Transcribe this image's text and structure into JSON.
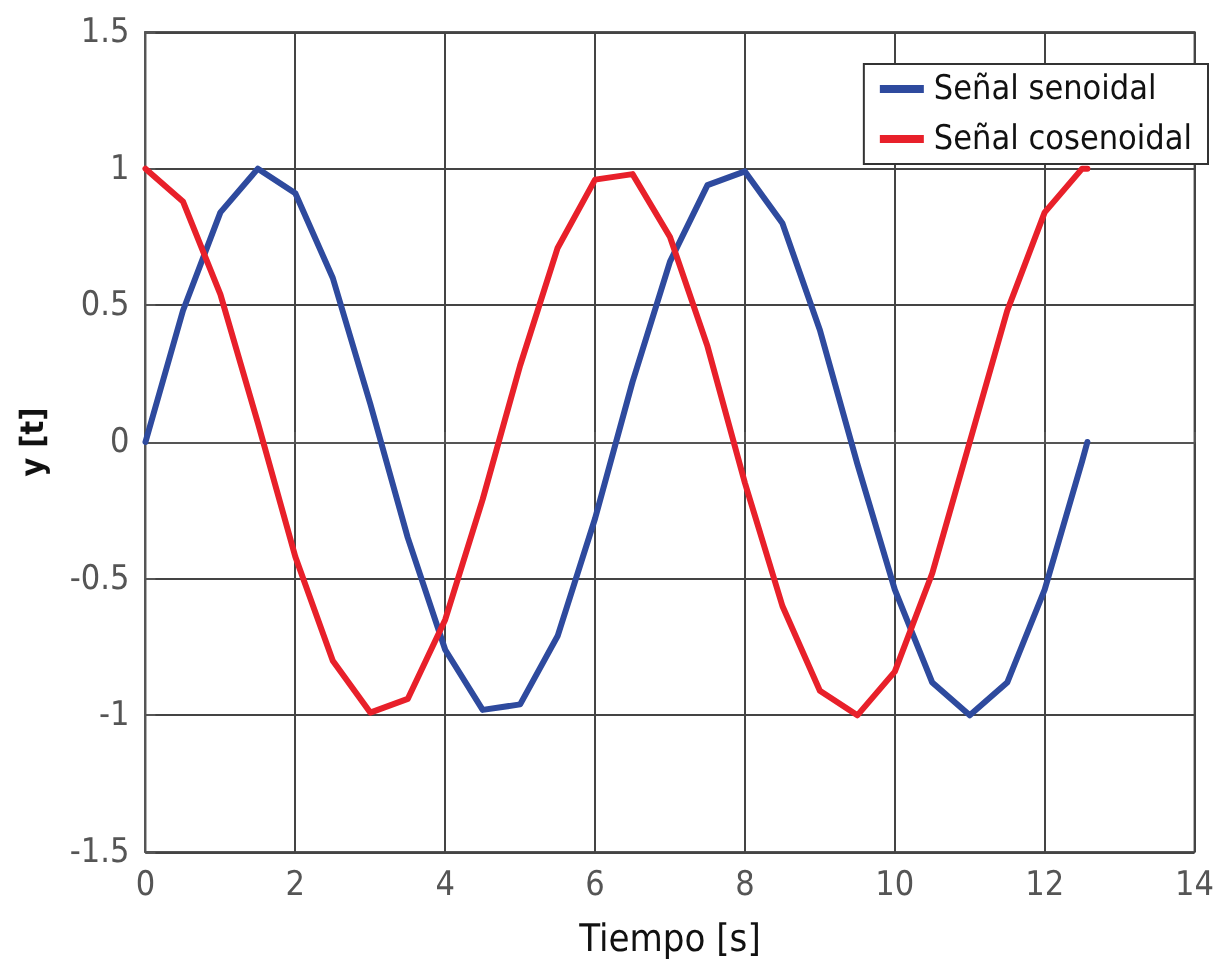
{
  "chart_data": {
    "type": "line",
    "xlabel": "Tiempo [s]",
    "ylabel": "y [t]",
    "xlim": [
      0,
      14
    ],
    "xticks": [
      0,
      2,
      4,
      6,
      8,
      10,
      12,
      14
    ],
    "ylim": [
      -1.5,
      1.5
    ],
    "yticks": [
      -1.5,
      -1,
      -0.5,
      0,
      0.5,
      1,
      1.5
    ],
    "x": [
      0,
      0.5,
      1,
      1.5,
      2,
      2.5,
      3,
      3.5,
      4,
      4.5,
      5,
      5.5,
      6,
      6.5,
      7,
      7.5,
      8,
      8.5,
      9,
      9.5,
      10,
      10.5,
      11,
      11.5,
      12,
      12.5,
      12.57
    ],
    "series": [
      {
        "name": "Señal senoidal",
        "color": "#2e4a9e",
        "values": [
          0,
          0.48,
          0.84,
          1,
          0.91,
          0.6,
          0.14,
          -0.35,
          -0.76,
          -0.98,
          -0.96,
          -0.71,
          -0.28,
          0.22,
          0.66,
          0.94,
          0.99,
          0.8,
          0.41,
          -0.08,
          -0.54,
          -0.88,
          -1,
          -0.88,
          -0.54,
          -0.07,
          0
        ]
      },
      {
        "name": "Señal cosenoidal",
        "color": "#e8202a",
        "values": [
          1,
          0.88,
          0.54,
          0.07,
          -0.42,
          -0.8,
          -0.99,
          -0.94,
          -0.65,
          -0.21,
          0.28,
          0.71,
          0.96,
          0.98,
          0.75,
          0.35,
          -0.15,
          -0.6,
          -0.91,
          -1,
          -0.84,
          -0.48,
          0,
          0.48,
          0.84,
          1,
          1
        ]
      }
    ],
    "grid": true,
    "legend": "top right",
    "marker": "none",
    "line_style": "solid"
  }
}
